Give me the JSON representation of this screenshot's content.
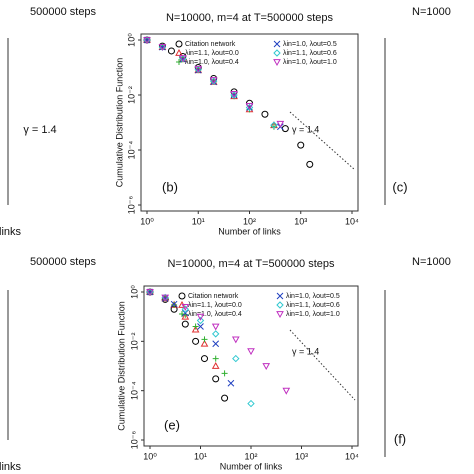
{
  "chart_data": [
    {
      "type": "scatter",
      "title": "N=10000, m=4 at T=500000 steps",
      "x_label": "Number of links",
      "y_label": "Cumulative Distribution Function",
      "panel_label": "(b)",
      "annotation": "γ = 1.4",
      "log_x": true,
      "log_y": true,
      "legend": "top-right",
      "xlim": [
        1,
        10000
      ],
      "ylim": [
        1e-06,
        1
      ],
      "xticks": [
        {
          "value": 1,
          "label": "10⁰"
        },
        {
          "value": 10,
          "label": "10¹"
        },
        {
          "value": 100,
          "label": "10²"
        },
        {
          "value": 1000,
          "label": "10³"
        },
        {
          "value": 10000,
          "label": "10⁴"
        }
      ],
      "yticks": [
        {
          "value": 1,
          "label": "10⁰"
        },
        {
          "value": 0.01,
          "label": "10⁻²"
        },
        {
          "value": 0.0001,
          "label": "10⁻⁴"
        },
        {
          "value": 1e-06,
          "label": "10⁻⁶"
        }
      ],
      "series": [
        {
          "name": "Citation network",
          "color": "#000000",
          "marker": "circle",
          "x": [
            1,
            2,
            3,
            5,
            10,
            20,
            50,
            100,
            200,
            500,
            1000,
            1500
          ],
          "values": [
            1,
            0.6,
            0.4,
            0.25,
            0.1,
            0.04,
            0.013,
            0.005,
            0.002,
            0.0006,
            0.00015,
            3e-05
          ]
        },
        {
          "name": "λin=1.1, λout=0.0",
          "color": "#e03030",
          "marker": "triangle",
          "x": [
            1,
            2,
            5,
            10,
            20,
            50,
            100,
            300
          ],
          "values": [
            1,
            0.55,
            0.2,
            0.08,
            0.03,
            0.009,
            0.003,
            0.0008
          ]
        },
        {
          "name": "λin=1.0, λout=0.4",
          "color": "#30b030",
          "marker": "plus",
          "x": [
            1,
            2,
            5,
            10,
            20,
            50,
            100,
            300
          ],
          "values": [
            1,
            0.55,
            0.2,
            0.08,
            0.03,
            0.009,
            0.003,
            0.0007
          ]
        },
        {
          "name": "λin=1.0, λout=0.5",
          "color": "#2040c0",
          "marker": "cross",
          "x": [
            1,
            2,
            5,
            10,
            20,
            50,
            100,
            400
          ],
          "values": [
            1,
            0.55,
            0.2,
            0.08,
            0.03,
            0.01,
            0.0035,
            0.0007
          ]
        },
        {
          "name": "λin=1.1, λout=0.6",
          "color": "#30c8d0",
          "marker": "diamond",
          "x": [
            1,
            2,
            5,
            10,
            20,
            50,
            100,
            300
          ],
          "values": [
            1,
            0.55,
            0.21,
            0.085,
            0.032,
            0.01,
            0.0035,
            0.0008
          ]
        },
        {
          "name": "λin=1.0, λout=1.0",
          "color": "#c030c0",
          "marker": "down",
          "x": [
            1,
            2,
            5,
            10,
            20,
            50,
            100,
            400
          ],
          "values": [
            1,
            0.56,
            0.22,
            0.09,
            0.035,
            0.011,
            0.004,
            0.0009
          ]
        }
      ]
    },
    {
      "type": "scatter",
      "title": "N=10000, m=4 at T=500000 steps",
      "x_label": "Number of links",
      "y_label": "Cumulative Distribution Function",
      "panel_label": "(e)",
      "annotation": "γ = 1.4",
      "log_x": true,
      "log_y": true,
      "legend": "top-right",
      "xlim": [
        1,
        10000
      ],
      "ylim": [
        1e-06,
        1
      ],
      "xticks": [
        {
          "value": 1,
          "label": "10⁰"
        },
        {
          "value": 10,
          "label": "10¹"
        },
        {
          "value": 100,
          "label": "10²"
        },
        {
          "value": 1000,
          "label": "10³"
        },
        {
          "value": 10000,
          "label": "10⁴"
        }
      ],
      "yticks": [
        {
          "value": 1,
          "label": "10⁰"
        },
        {
          "value": 0.01,
          "label": "10⁻²"
        },
        {
          "value": 0.0001,
          "label": "10⁻⁴"
        },
        {
          "value": 1e-06,
          "label": "10⁻⁶"
        }
      ],
      "series": [
        {
          "name": "Citation network",
          "color": "#000000",
          "marker": "circle",
          "x": [
            1,
            2,
            3,
            5,
            8,
            12,
            20,
            30
          ],
          "values": [
            1,
            0.5,
            0.2,
            0.05,
            0.01,
            0.002,
            0.0003,
            5e-05
          ]
        },
        {
          "name": "λin=1.1, λout=0.0",
          "color": "#e03030",
          "marker": "triangle",
          "x": [
            1,
            2,
            3,
            5,
            8,
            12,
            20
          ],
          "values": [
            1,
            0.55,
            0.3,
            0.1,
            0.03,
            0.008,
            0.001
          ]
        },
        {
          "name": "λin=1.0, λout=0.4",
          "color": "#30b030",
          "marker": "plus",
          "x": [
            1,
            2,
            3,
            5,
            8,
            12,
            20,
            30
          ],
          "values": [
            1,
            0.55,
            0.3,
            0.12,
            0.04,
            0.012,
            0.002,
            0.0005
          ]
        },
        {
          "name": "λin=1.0, λout=0.5",
          "color": "#2040c0",
          "marker": "cross",
          "x": [
            1,
            2,
            3,
            5,
            10,
            20,
            40
          ],
          "values": [
            1,
            0.55,
            0.32,
            0.14,
            0.04,
            0.008,
            0.0002
          ]
        },
        {
          "name": "λin=1.1, λout=0.6",
          "color": "#30c8d0",
          "marker": "diamond",
          "x": [
            1,
            2,
            5,
            10,
            20,
            50,
            100
          ],
          "values": [
            1,
            0.6,
            0.2,
            0.07,
            0.02,
            0.002,
            3e-05
          ]
        },
        {
          "name": "λin=1.0, λout=1.0",
          "color": "#c030c0",
          "marker": "down",
          "x": [
            1,
            2,
            5,
            10,
            20,
            50,
            100,
            200,
            500
          ],
          "values": [
            1,
            0.6,
            0.25,
            0.1,
            0.04,
            0.012,
            0.004,
            0.001,
            0.0001
          ]
        }
      ]
    }
  ],
  "cropped_text": [
    "500000 steps",
    "N=1000",
    "(c)",
    "500000 steps",
    "N=1000",
    "(f)",
    "γ = 1.4",
    "links",
    "links"
  ]
}
